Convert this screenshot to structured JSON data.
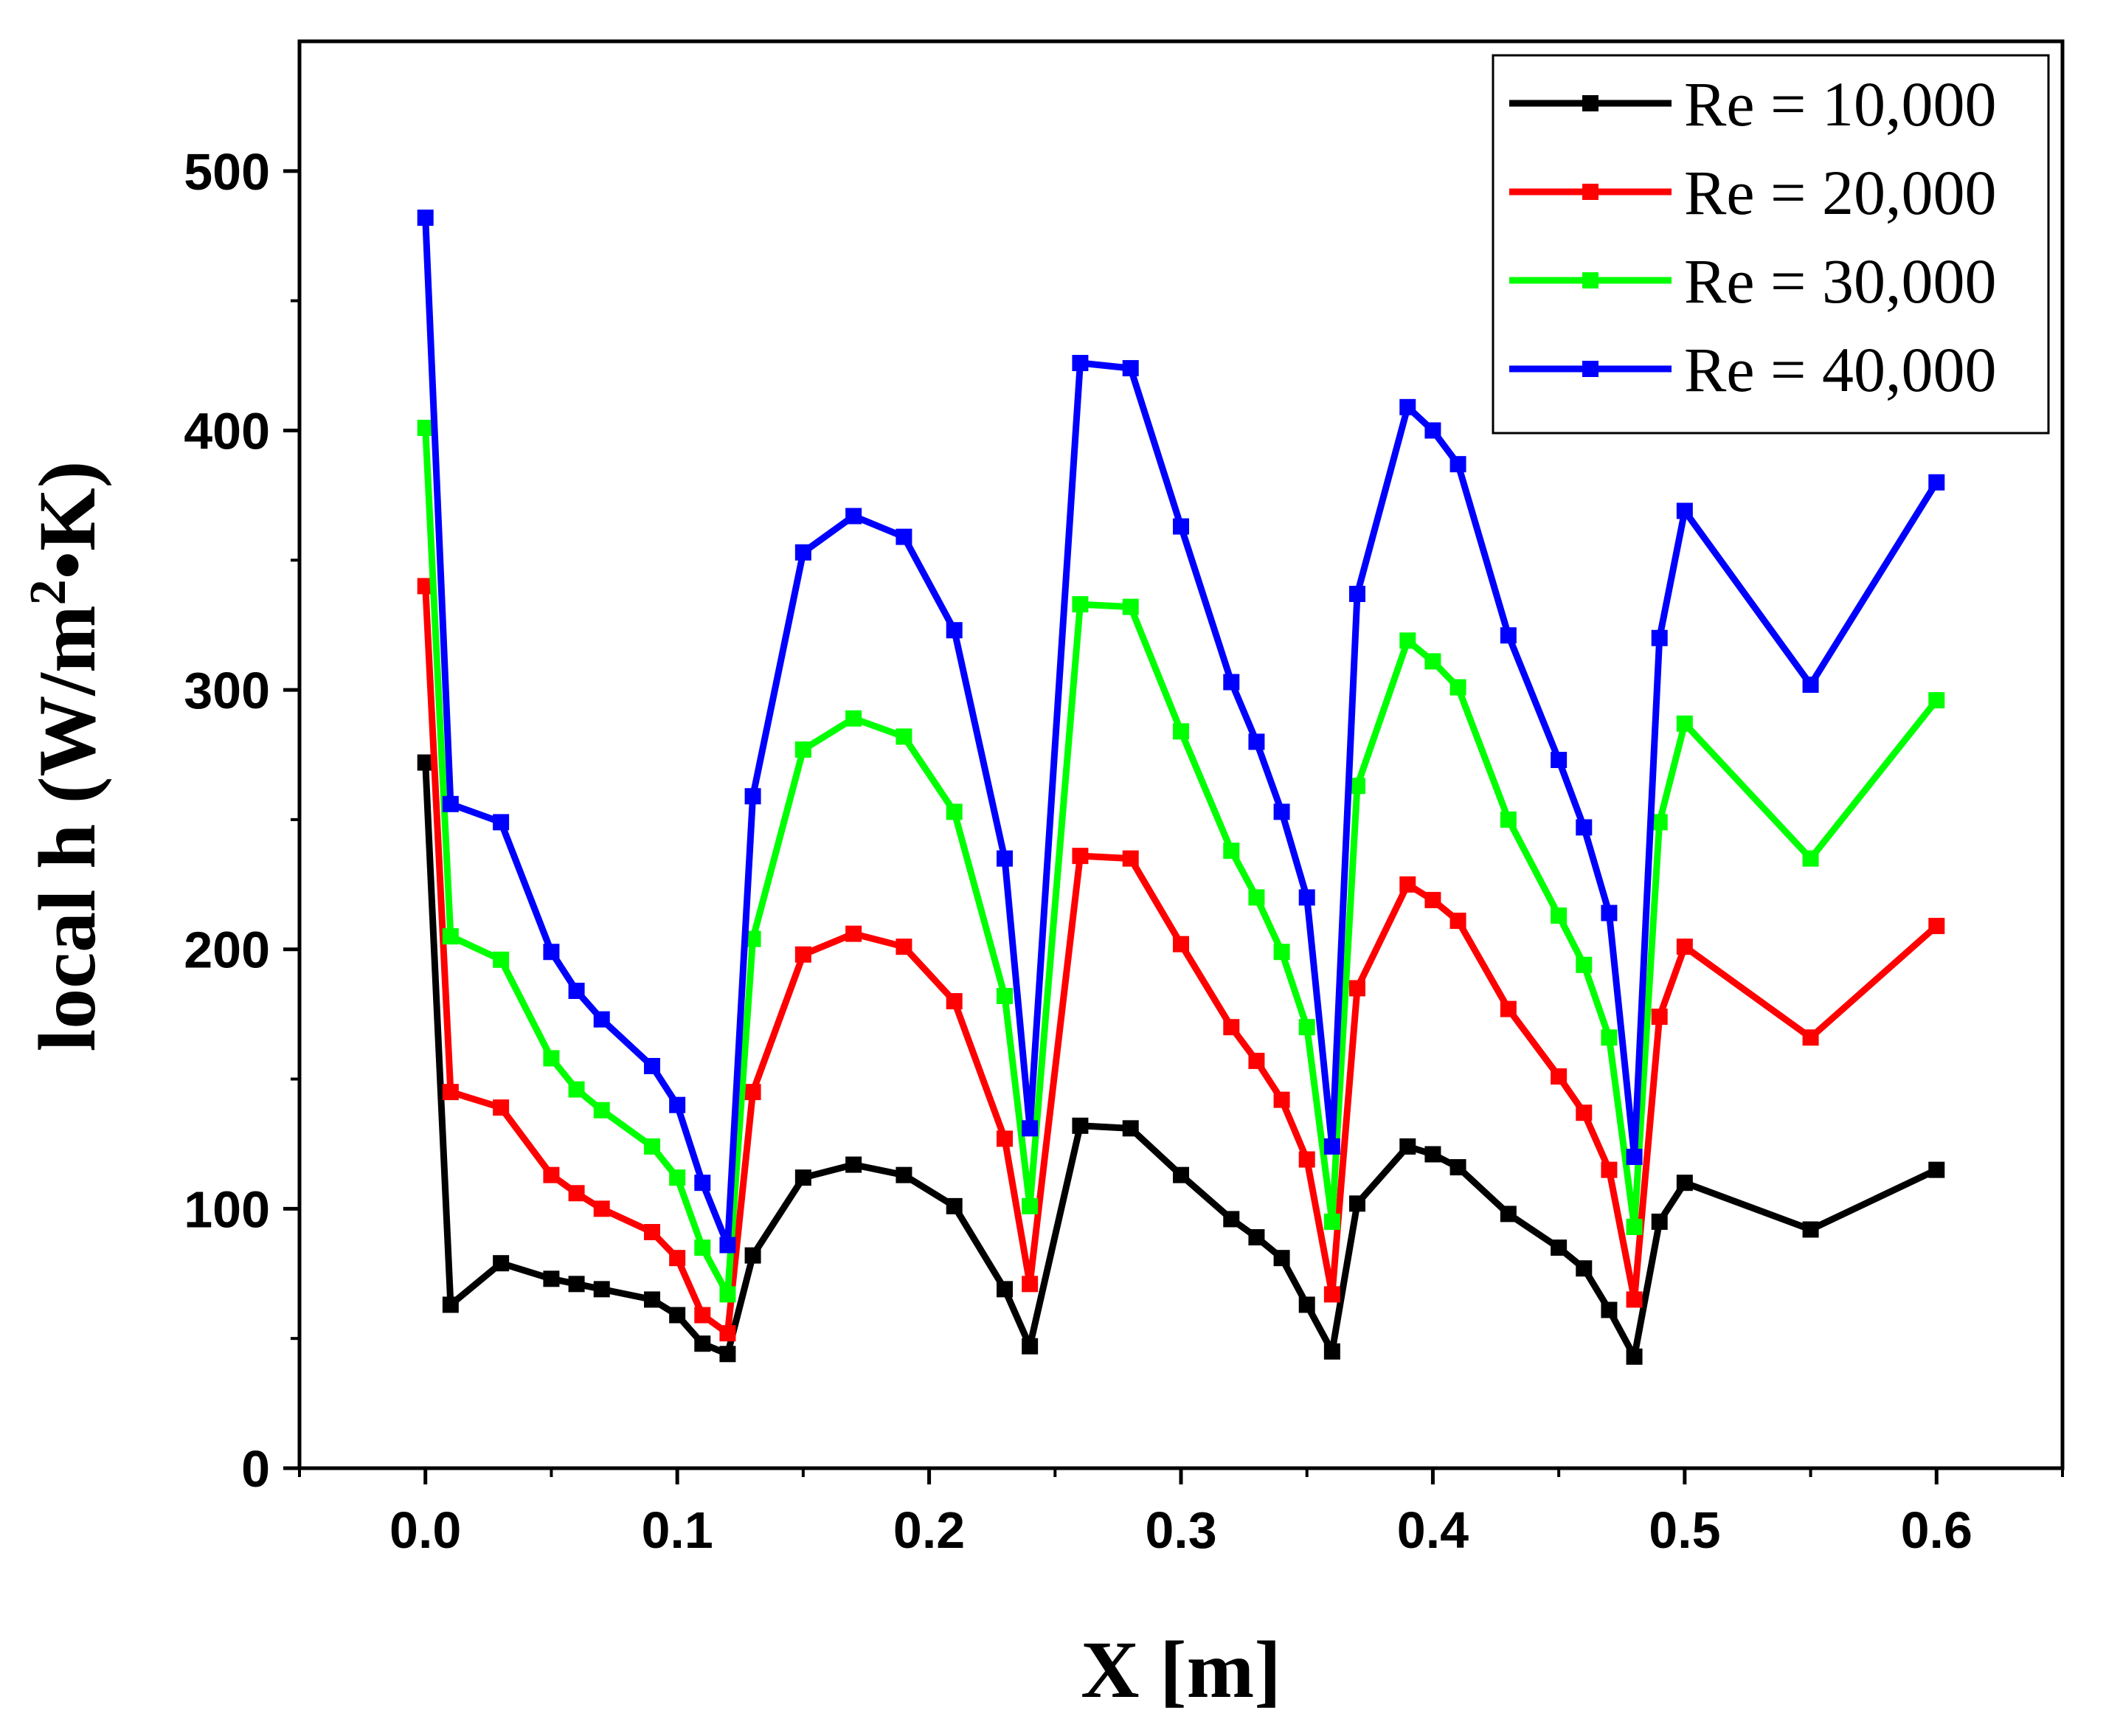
{
  "chart_data": {
    "type": "line",
    "title": "",
    "xlabel": "X [m]",
    "ylabel": "local h (W/m",
    "ylabel_sup": "2",
    "ylabel_end": "•K)",
    "xlim": [
      -0.05,
      0.65
    ],
    "ylim": [
      0,
      550
    ],
    "xticks": [
      0.0,
      0.1,
      0.2,
      0.3,
      0.4,
      0.5,
      0.6
    ],
    "xtick_labels": [
      "0.0",
      "0.1",
      "0.2",
      "0.3",
      "0.4",
      "0.5",
      "0.6"
    ],
    "yticks": [
      0,
      100,
      200,
      300,
      400,
      500
    ],
    "ytick_labels": [
      "0",
      "100",
      "200",
      "300",
      "400",
      "500"
    ],
    "legend_position": "top-right",
    "x": [
      0,
      0.01,
      0.03,
      0.05,
      0.06,
      0.07,
      0.09,
      0.1,
      0.11,
      0.12,
      0.13,
      0.15,
      0.17,
      0.19,
      0.21,
      0.23,
      0.24,
      0.26,
      0.28,
      0.3,
      0.32,
      0.33,
      0.34,
      0.35,
      0.36,
      0.37,
      0.39,
      0.4,
      0.41,
      0.43,
      0.45,
      0.46,
      0.47,
      0.48,
      0.49,
      0.5,
      0.55,
      0.6
    ],
    "series": [
      {
        "name": "Re = 10,000",
        "color": "#000000",
        "values": [
          272,
          63,
          79,
          73,
          71,
          69,
          65,
          59,
          48,
          44,
          82,
          112,
          117,
          113,
          101,
          69,
          47,
          132,
          131,
          113,
          96,
          89,
          81,
          63,
          45,
          102,
          124,
          121,
          116,
          98,
          85,
          77,
          61,
          43,
          95,
          110,
          92,
          115
        ]
      },
      {
        "name": "Re = 20,000",
        "color": "#ff0000",
        "values": [
          340,
          145,
          139,
          113,
          106,
          100,
          91,
          81,
          59,
          52,
          145,
          198,
          206,
          201,
          180,
          127,
          71,
          236,
          235,
          202,
          170,
          157,
          142,
          119,
          67,
          185,
          225,
          219,
          211,
          177,
          151,
          137,
          115,
          65,
          174,
          201,
          166,
          209
        ]
      },
      {
        "name": "Re = 30,000",
        "color": "#00ff00",
        "values": [
          401,
          205,
          196,
          158,
          146,
          138,
          124,
          112,
          85,
          67,
          204,
          277,
          289,
          282,
          253,
          182,
          101,
          333,
          332,
          284,
          238,
          220,
          199,
          170,
          95,
          263,
          319,
          311,
          301,
          250,
          213,
          194,
          166,
          93,
          249,
          287,
          235,
          296
        ]
      },
      {
        "name": "Re = 40,000",
        "color": "#0000ff",
        "values": [
          482,
          256,
          249,
          199,
          184,
          173,
          155,
          140,
          110,
          86,
          259,
          353,
          367,
          359,
          323,
          235,
          131,
          426,
          424,
          363,
          303,
          280,
          253,
          220,
          124,
          337,
          409,
          400,
          387,
          321,
          273,
          247,
          214,
          120,
          320,
          369,
          302,
          380
        ]
      }
    ]
  }
}
